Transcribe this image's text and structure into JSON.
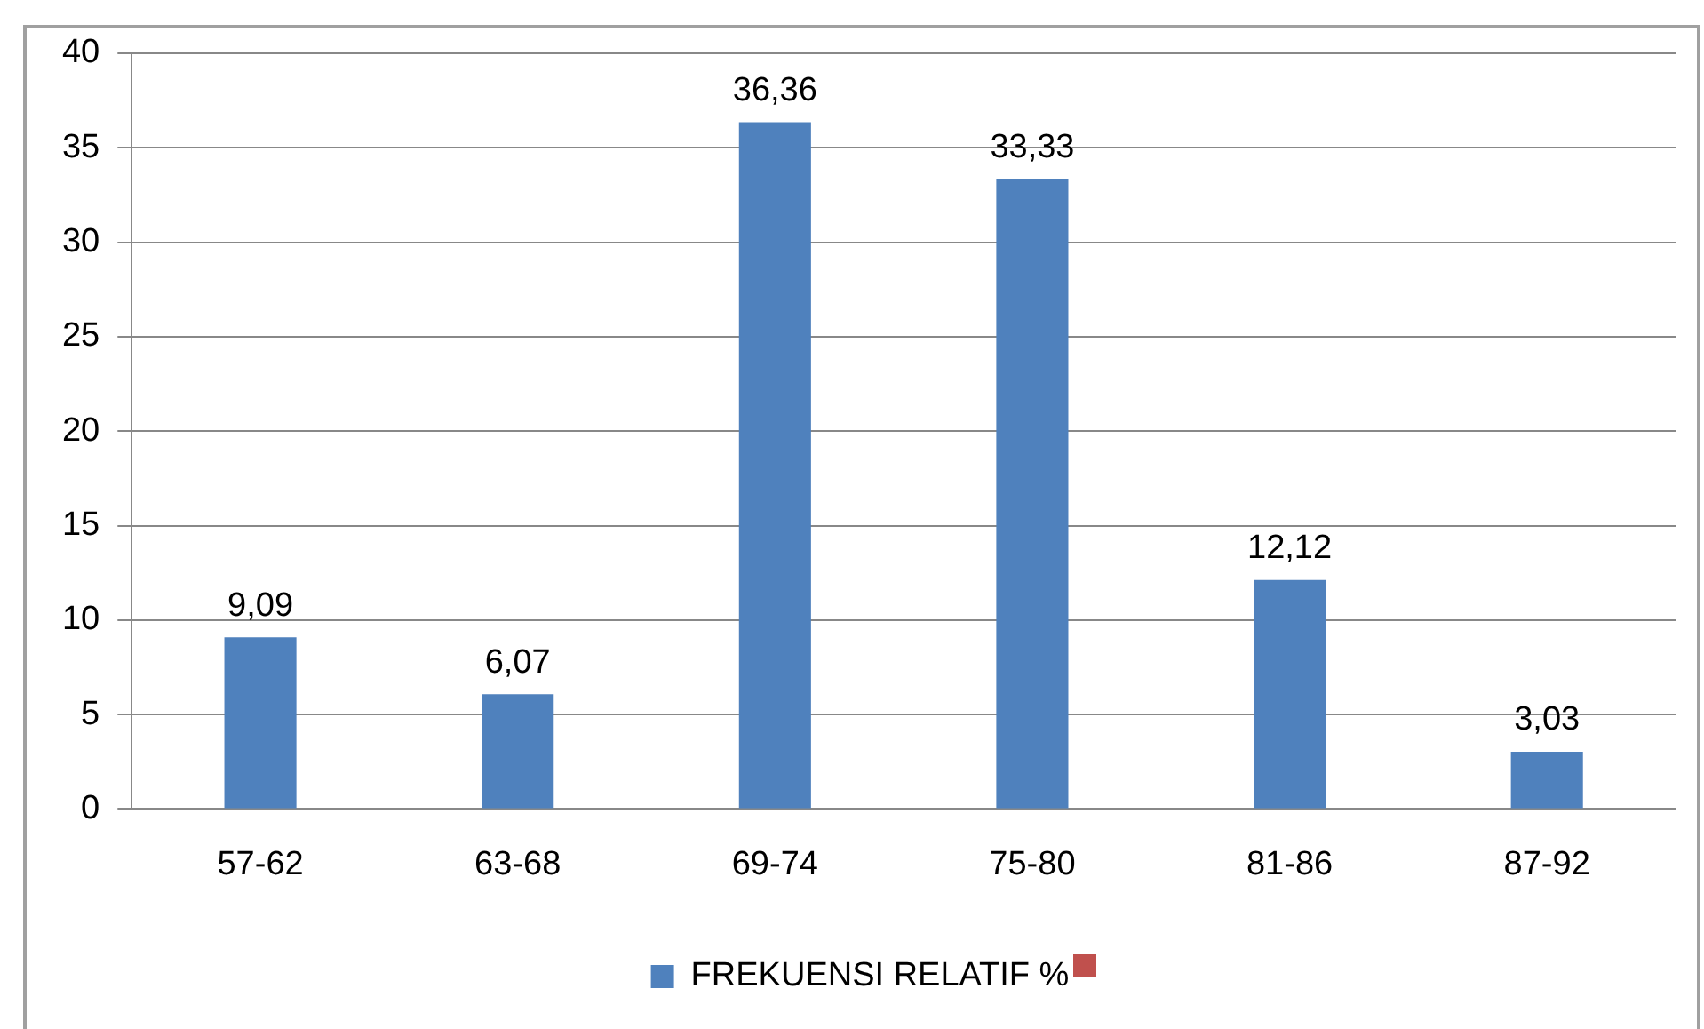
{
  "chart_data": {
    "type": "bar",
    "categories": [
      "57-62",
      "63-68",
      "69-74",
      "75-80",
      "81-86",
      "87-92"
    ],
    "series": [
      {
        "name": "FREKUENSI RELATIF %",
        "color": "#4f81bd",
        "values": [
          9.09,
          6.07,
          36.36,
          33.33,
          12.12,
          3.03
        ],
        "value_labels": [
          "9,09",
          "6,07",
          "36,36",
          "33,33",
          "12,12",
          "3,03"
        ]
      }
    ],
    "ylim": [
      0,
      40
    ],
    "yticks": [
      0,
      5,
      10,
      15,
      20,
      25,
      30,
      35,
      40
    ],
    "grid": "y",
    "legend": "bottom"
  }
}
